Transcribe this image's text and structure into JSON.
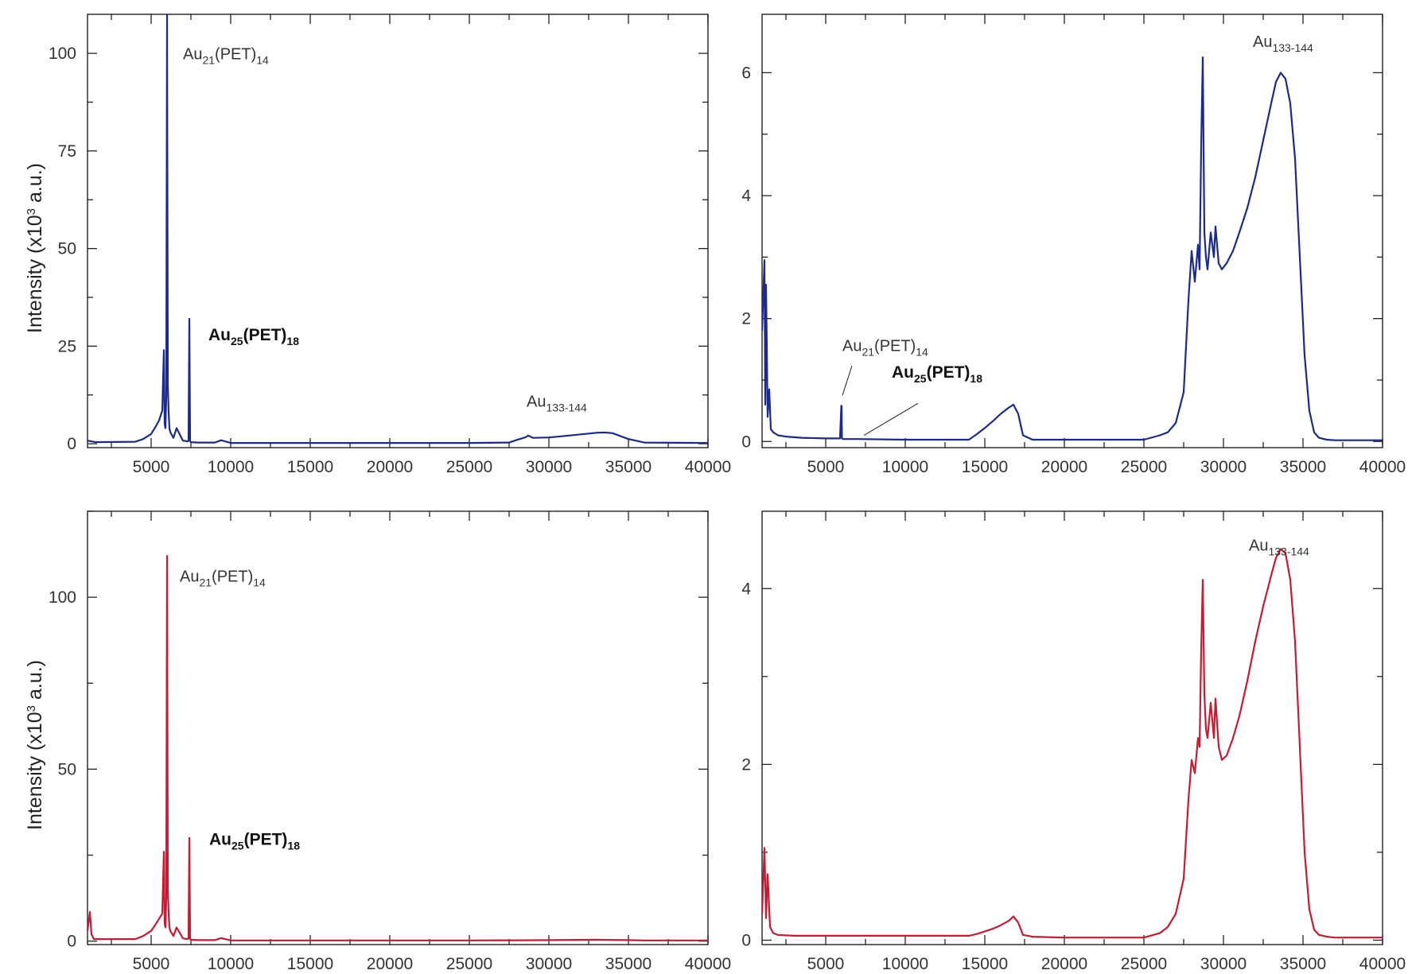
{
  "figure": {
    "y_axis_title_main": "Intensity (x10",
    "y_axis_title_sup": "3",
    "y_axis_title_tail": " a.u.)"
  },
  "chart_data": [
    {
      "id": "top-left",
      "type": "line",
      "color": "#1c2a8c",
      "ylabel": "Intensity (x10^3 a.u.)",
      "xlim": [
        1000,
        40000
      ],
      "ylim": [
        -1,
        110
      ],
      "xticks": [
        5000,
        10000,
        15000,
        20000,
        25000,
        30000,
        35000,
        40000
      ],
      "xtick_labels": [
        "5000",
        "10000",
        "15000",
        "20000",
        "25000",
        "30000",
        "35000",
        "40000"
      ],
      "yticks": [
        0,
        25,
        50,
        75,
        100
      ],
      "ytick_labels": [
        "0",
        "25",
        "50",
        "75",
        "100"
      ],
      "grid": false,
      "series": [
        {
          "x": [
            1000,
            1500,
            4000,
            4500,
            5000,
            5300,
            5500,
            5700,
            5800,
            5850,
            5900,
            5950,
            6000,
            6050,
            6100,
            6150,
            6200,
            6400,
            6600,
            7000,
            7300,
            7350,
            7400,
            7450,
            7500,
            8000,
            9000,
            9400,
            10000,
            15000,
            20000,
            25000,
            27500,
            28000,
            28500,
            28700,
            29000,
            30000,
            31000,
            32000,
            33000,
            33500,
            34000,
            35000,
            36000,
            40000
          ],
          "y": [
            0.8,
            0.4,
            0.5,
            1.2,
            2.5,
            4.5,
            6.0,
            8.5,
            24.0,
            5.0,
            4.0,
            12.0,
            110,
            15.0,
            8.0,
            4.0,
            3.0,
            1.5,
            4.0,
            0.8,
            0.6,
            0.8,
            32.0,
            0.6,
            0.4,
            0.3,
            0.3,
            0.9,
            0.2,
            0.2,
            0.2,
            0.2,
            0.3,
            1.0,
            1.6,
            2.1,
            1.5,
            1.6,
            2.0,
            2.4,
            2.8,
            2.9,
            2.7,
            1.2,
            0.3,
            0.2
          ]
        }
      ],
      "annotations": [
        {
          "base": "Au",
          "sub": "21",
          "rest": "(PET)",
          "sub2": "14",
          "bold": false,
          "x": 7000,
          "y": 98.5
        },
        {
          "base": "Au",
          "sub": "25",
          "rest": "(PET)",
          "sub2": "18",
          "bold": true,
          "x": 8600,
          "y": 26.5
        },
        {
          "base": "Au",
          "sub": "133-144",
          "rest": "",
          "sub2": "",
          "bold": false,
          "x": 28600,
          "y": 9.5
        }
      ]
    },
    {
      "id": "top-right",
      "type": "line",
      "color": "#1c2a8c",
      "xlim": [
        1000,
        40000
      ],
      "ylim": [
        -0.1,
        6.95
      ],
      "xticks": [
        5000,
        10000,
        15000,
        20000,
        25000,
        30000,
        35000,
        40000
      ],
      "xtick_labels": [
        "5000",
        "10000",
        "15000",
        "20000",
        "25000",
        "30000",
        "35000",
        "40000"
      ],
      "yticks": [
        0,
        2,
        4,
        6
      ],
      "ytick_labels": [
        "0",
        "2",
        "4",
        "6"
      ],
      "grid": false,
      "series": [
        {
          "x": [
            1000,
            1150,
            1200,
            1250,
            1350,
            1450,
            1550,
            1700,
            2000,
            2500,
            3500,
            5000,
            5900,
            5980,
            6000,
            6020,
            6100,
            7000,
            10000,
            14000,
            14500,
            15000,
            15500,
            16000,
            16500,
            16800,
            17100,
            17400,
            18000,
            20000,
            25000,
            26000,
            26500,
            27000,
            27500,
            27800,
            28000,
            28200,
            28400,
            28500,
            28600,
            28700,
            28800,
            28900,
            29000,
            29200,
            29400,
            29500,
            29700,
            29900,
            30200,
            30600,
            31000,
            31500,
            32000,
            32500,
            33000,
            33300,
            33600,
            33900,
            34200,
            34500,
            34800,
            35100,
            35400,
            35700,
            36000,
            36500,
            37000,
            40000
          ],
          "y": [
            1.8,
            2.95,
            0.6,
            2.55,
            0.4,
            0.85,
            0.2,
            0.15,
            0.1,
            0.08,
            0.06,
            0.05,
            0.05,
            0.58,
            0.58,
            0.05,
            0.04,
            0.04,
            0.03,
            0.03,
            0.12,
            0.22,
            0.33,
            0.45,
            0.55,
            0.6,
            0.45,
            0.1,
            0.03,
            0.03,
            0.03,
            0.1,
            0.15,
            0.3,
            0.8,
            2.3,
            3.1,
            2.6,
            3.2,
            2.8,
            4.8,
            6.25,
            3.4,
            3.0,
            2.8,
            3.4,
            3.0,
            3.5,
            2.9,
            2.8,
            2.9,
            3.1,
            3.4,
            3.8,
            4.3,
            4.9,
            5.5,
            5.85,
            6.0,
            5.9,
            5.5,
            4.6,
            3.0,
            1.4,
            0.5,
            0.15,
            0.06,
            0.03,
            0.02,
            0.02
          ]
        }
      ],
      "annotations": [
        {
          "base": "Au",
          "sub": "21",
          "rest": "(PET)",
          "sub2": "14",
          "bold": false,
          "x": 6050,
          "y": 1.47,
          "leader": {
            "x1": 6650,
            "y1": 1.23,
            "x2": 6050,
            "y2": 0.75
          }
        },
        {
          "base": "Au",
          "sub": "25",
          "rest": "(PET)",
          "sub2": "18",
          "bold": true,
          "x": 9150,
          "y": 1.04,
          "leader": {
            "x1": 10800,
            "y1": 0.62,
            "x2": 7400,
            "y2": 0.1
          }
        },
        {
          "base": "Au",
          "sub": "133-144",
          "rest": "",
          "sub2": "",
          "bold": false,
          "x": 31850,
          "y": 6.42
        }
      ]
    },
    {
      "id": "bottom-left",
      "type": "line",
      "color": "#c41c31",
      "ylabel": "Intensity (x10^3 a.u.)",
      "xlim": [
        1000,
        40000
      ],
      "ylim": [
        -1,
        125
      ],
      "xticks": [
        5000,
        10000,
        15000,
        20000,
        25000,
        30000,
        35000,
        40000
      ],
      "xtick_labels": [
        "5000",
        "10000",
        "15000",
        "20000",
        "25000",
        "30000",
        "35000",
        "40000"
      ],
      "yticks": [
        0,
        50,
        100
      ],
      "ytick_labels": [
        "0",
        "50",
        "100"
      ],
      "grid": false,
      "series": [
        {
          "x": [
            1000,
            1150,
            1250,
            1400,
            4000,
            4500,
            5000,
            5300,
            5500,
            5700,
            5800,
            5850,
            5900,
            5950,
            6000,
            6050,
            6100,
            6150,
            6200,
            6400,
            6600,
            7000,
            7300,
            7350,
            7400,
            7450,
            7500,
            8000,
            9000,
            9400,
            10000,
            15000,
            20000,
            25000,
            28000,
            30000,
            33000,
            35000,
            36000,
            40000
          ],
          "y": [
            3.0,
            8.5,
            2.0,
            0.6,
            0.6,
            1.5,
            3.0,
            5.0,
            6.5,
            8.0,
            26.0,
            5.0,
            4.0,
            12.0,
            112,
            15.0,
            8.0,
            4.0,
            3.0,
            1.5,
            4.0,
            0.8,
            0.6,
            0.8,
            30.0,
            0.6,
            0.4,
            0.3,
            0.3,
            0.9,
            0.2,
            0.2,
            0.2,
            0.2,
            0.25,
            0.3,
            0.4,
            0.3,
            0.2,
            0.2
          ]
        }
      ],
      "annotations": [
        {
          "base": "Au",
          "sub": "21",
          "rest": "(PET)",
          "sub2": "14",
          "bold": false,
          "x": 6800,
          "y": 104.5
        },
        {
          "base": "Au",
          "sub": "25",
          "rest": "(PET)",
          "sub2": "18",
          "bold": true,
          "x": 8650,
          "y": 28.0
        }
      ]
    },
    {
      "id": "bottom-right",
      "type": "line",
      "color": "#c41c31",
      "xlim": [
        1000,
        40000
      ],
      "ylim": [
        -0.05,
        4.88
      ],
      "xticks": [
        5000,
        10000,
        15000,
        20000,
        25000,
        30000,
        35000,
        40000
      ],
      "xtick_labels": [
        "5000",
        "10000",
        "15000",
        "20000",
        "25000",
        "30000",
        "35000",
        "40000"
      ],
      "yticks": [
        0,
        2,
        4
      ],
      "ytick_labels": [
        "0",
        "2",
        "4"
      ],
      "grid": false,
      "series": [
        {
          "x": [
            1000,
            1150,
            1250,
            1350,
            1500,
            1700,
            2000,
            3000,
            5000,
            10000,
            14000,
            14500,
            15000,
            15500,
            16000,
            16500,
            16800,
            17100,
            17400,
            18000,
            20000,
            25000,
            26000,
            26500,
            27000,
            27500,
            27800,
            28000,
            28200,
            28400,
            28500,
            28600,
            28700,
            28800,
            28900,
            29000,
            29200,
            29400,
            29500,
            29700,
            29900,
            30200,
            30600,
            31000,
            31500,
            32000,
            32500,
            33000,
            33300,
            33600,
            33900,
            34200,
            34500,
            34800,
            35100,
            35400,
            35700,
            36000,
            36500,
            37000,
            40000
          ],
          "y": [
            0.3,
            1.05,
            0.25,
            0.75,
            0.15,
            0.08,
            0.06,
            0.05,
            0.05,
            0.05,
            0.05,
            0.07,
            0.1,
            0.13,
            0.17,
            0.22,
            0.27,
            0.2,
            0.06,
            0.04,
            0.03,
            0.03,
            0.08,
            0.15,
            0.3,
            0.7,
            1.6,
            2.05,
            1.9,
            2.3,
            2.2,
            3.3,
            4.1,
            2.8,
            2.4,
            2.3,
            2.7,
            2.3,
            2.75,
            2.2,
            2.05,
            2.1,
            2.3,
            2.55,
            2.95,
            3.4,
            3.8,
            4.15,
            4.35,
            4.45,
            4.4,
            4.1,
            3.4,
            2.2,
            1.0,
            0.35,
            0.12,
            0.06,
            0.04,
            0.03,
            0.03
          ]
        }
      ],
      "annotations": [
        {
          "base": "Au",
          "sub": "133-144",
          "rest": "",
          "sub2": "",
          "bold": false,
          "x": 31600,
          "y": 4.43
        }
      ]
    }
  ]
}
